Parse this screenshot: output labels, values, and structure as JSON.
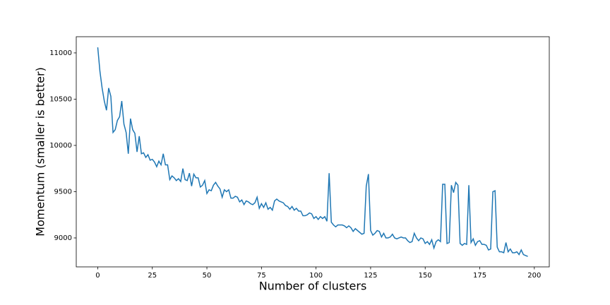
{
  "chart_data": {
    "type": "line",
    "x_label": "Number of clusters",
    "y_label": "Momentum (smaller is better)",
    "x": [
      0,
      1,
      2,
      3,
      4,
      5,
      6,
      7,
      8,
      9,
      10,
      11,
      12,
      13,
      14,
      15,
      16,
      17,
      18,
      19,
      20,
      21,
      22,
      23,
      24,
      25,
      26,
      27,
      28,
      29,
      30,
      31,
      32,
      33,
      34,
      35,
      36,
      37,
      38,
      39,
      40,
      41,
      42,
      43,
      44,
      45,
      46,
      47,
      48,
      49,
      50,
      51,
      52,
      53,
      54,
      55,
      56,
      57,
      58,
      59,
      60,
      61,
      62,
      63,
      64,
      65,
      66,
      67,
      68,
      69,
      70,
      71,
      72,
      73,
      74,
      75,
      76,
      77,
      78,
      79,
      80,
      81,
      82,
      83,
      84,
      85,
      86,
      87,
      88,
      89,
      90,
      91,
      92,
      93,
      94,
      95,
      96,
      97,
      98,
      99,
      100,
      101,
      102,
      103,
      104,
      105,
      106,
      107,
      108,
      109,
      110,
      111,
      112,
      113,
      114,
      115,
      116,
      117,
      118,
      119,
      120,
      121,
      122,
      123,
      124,
      125,
      126,
      127,
      128,
      129,
      130,
      131,
      132,
      133,
      134,
      135,
      136,
      137,
      138,
      139,
      140,
      141,
      142,
      143,
      144,
      145,
      146,
      147,
      148,
      149,
      150,
      151,
      152,
      153,
      154,
      155,
      156,
      157,
      158,
      159,
      160,
      161,
      162,
      163,
      164,
      165,
      166,
      167,
      168,
      169,
      170,
      171,
      172,
      173,
      174,
      175,
      176,
      177,
      178,
      179,
      180,
      181,
      182,
      183,
      184,
      185,
      186,
      187,
      188,
      189,
      190,
      191,
      192,
      193,
      194,
      195,
      196,
      197
    ],
    "series": [
      {
        "color": "#1f77b4",
        "values": [
          11060,
          10800,
          10620,
          10480,
          10380,
          10620,
          10530,
          10140,
          10170,
          10270,
          10310,
          10480,
          10230,
          10140,
          9910,
          10290,
          10170,
          10130,
          9930,
          10100,
          9910,
          9920,
          9870,
          9900,
          9840,
          9850,
          9820,
          9770,
          9830,
          9790,
          9910,
          9790,
          9790,
          9630,
          9670,
          9650,
          9620,
          9640,
          9610,
          9750,
          9630,
          9620,
          9700,
          9560,
          9690,
          9650,
          9650,
          9550,
          9570,
          9620,
          9480,
          9520,
          9510,
          9570,
          9600,
          9560,
          9530,
          9440,
          9520,
          9500,
          9520,
          9430,
          9430,
          9450,
          9440,
          9390,
          9410,
          9360,
          9400,
          9390,
          9370,
          9360,
          9380,
          9440,
          9320,
          9370,
          9330,
          9380,
          9310,
          9330,
          9300,
          9400,
          9420,
          9400,
          9390,
          9380,
          9350,
          9340,
          9310,
          9340,
          9300,
          9320,
          9290,
          9290,
          9240,
          9240,
          9250,
          9270,
          9260,
          9210,
          9230,
          9200,
          9230,
          9210,
          9230,
          9180,
          9700,
          9170,
          9140,
          9120,
          9140,
          9140,
          9140,
          9130,
          9110,
          9130,
          9110,
          9070,
          9100,
          9080,
          9060,
          9040,
          9050,
          9560,
          9690,
          9080,
          9030,
          9050,
          9080,
          9070,
          9010,
          9050,
          9000,
          9000,
          9010,
          9040,
          9000,
          8990,
          9000,
          9010,
          9000,
          9000,
          8970,
          8950,
          8960,
          9050,
          9000,
          8970,
          9000,
          8990,
          8940,
          8960,
          8930,
          8980,
          8890,
          8960,
          8980,
          8960,
          9580,
          9580,
          8940,
          8950,
          9570,
          9490,
          9600,
          9570,
          8940,
          8920,
          8940,
          8930,
          9570,
          8950,
          8990,
          8920,
          8960,
          8970,
          8930,
          8930,
          8920,
          8870,
          8880,
          9500,
          9510,
          8900,
          8850,
          8850,
          8840,
          8950,
          8850,
          8880,
          8840,
          8840,
          8850,
          8820,
          8870,
          8820,
          8810,
          8800
        ]
      }
    ],
    "xlim": [
      -9.85,
      206.85
    ],
    "ylim": [
      8687,
      11175
    ],
    "xticks": [
      0,
      25,
      50,
      75,
      100,
      125,
      150,
      175,
      200
    ],
    "yticks": [
      9000,
      9500,
      10000,
      10500,
      11000
    ]
  }
}
